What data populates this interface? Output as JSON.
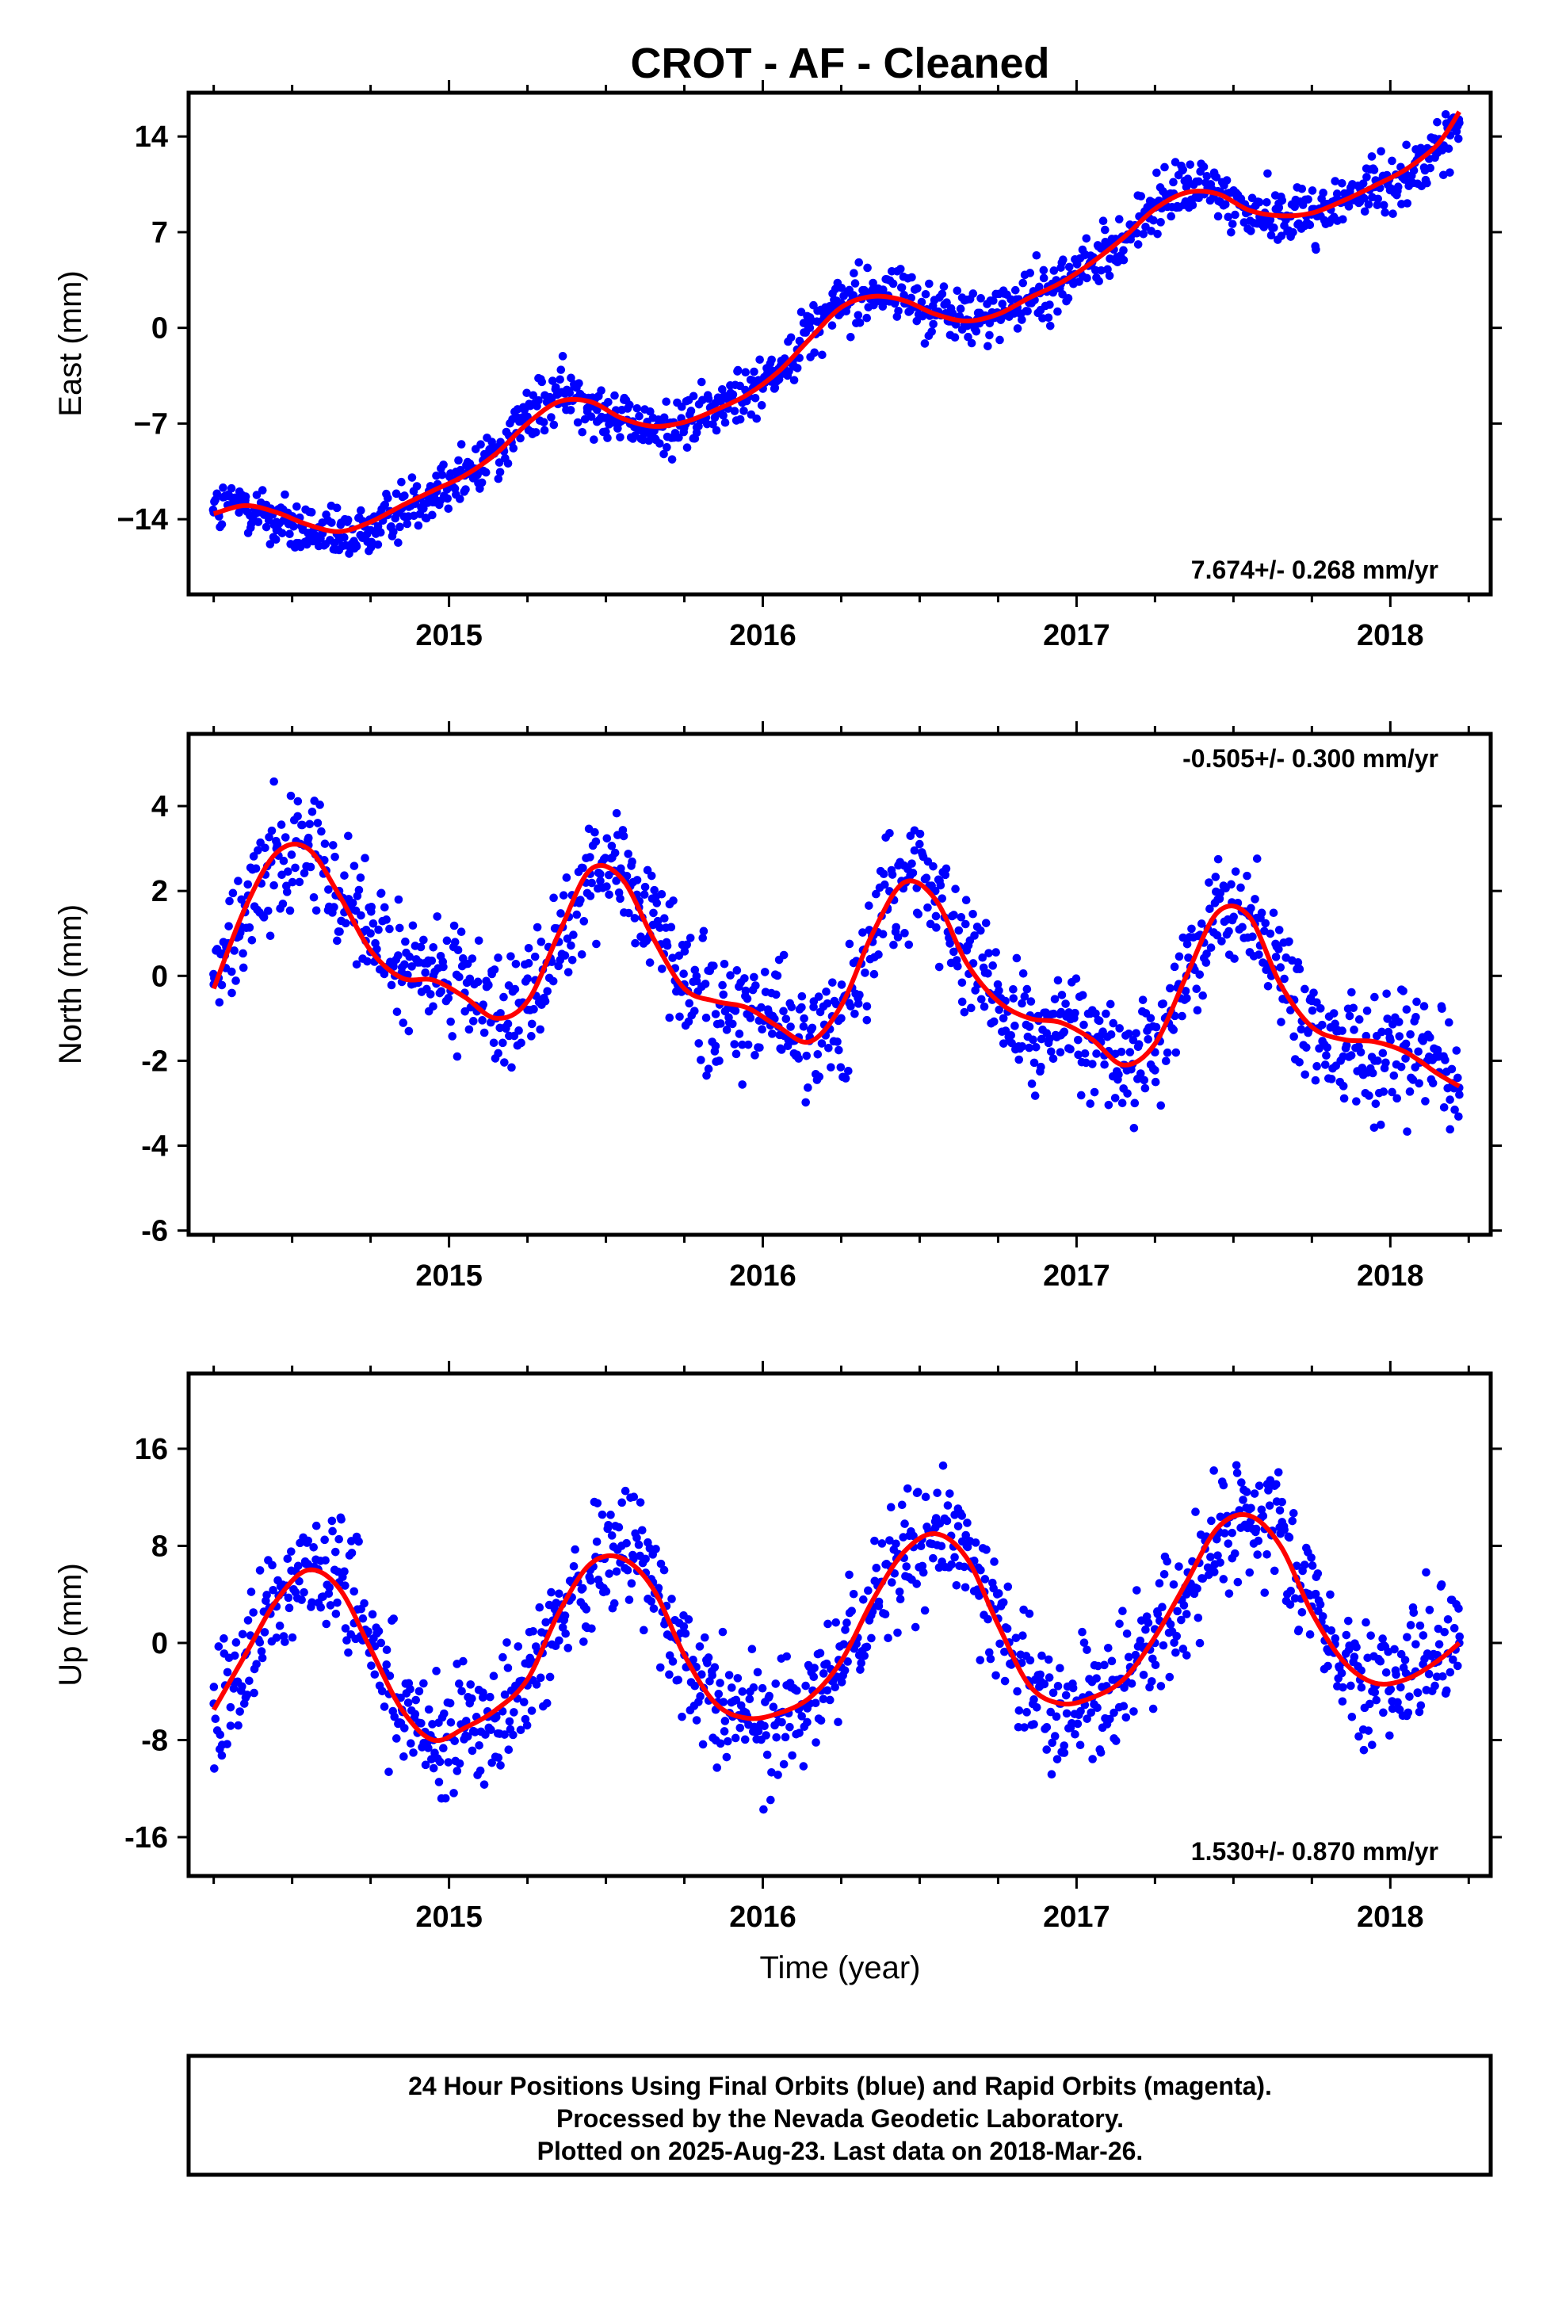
{
  "title": "CROT  - AF - Cleaned",
  "xlabel": "Time (year)",
  "colors": {
    "points": "#0000ff",
    "model": "#ff0000",
    "frame": "#000000"
  },
  "footer": {
    "line1": "24 Hour Positions Using Final Orbits (blue) and Rapid Orbits (magenta).",
    "line2": "Processed by the Nevada Geodetic Laboratory.",
    "line3": "Plotted on 2025-Aug-23. Last data on 2018-Mar-26."
  },
  "chart_data": [
    {
      "type": "scatter",
      "ylabel": "East (mm)",
      "rate_label": "7.674+/- 0.268 mm/yr",
      "rate_placement": "bottom-right",
      "xlim": [
        2014.17,
        2018.32
      ],
      "ylim": [
        -19.5,
        17.2
      ],
      "x_ticks": [
        2015,
        2016,
        2017,
        2018
      ],
      "x_tick_labels": [
        "2015",
        "2016",
        "2017",
        "2018"
      ],
      "y_ticks": [
        14,
        7,
        0,
        -7,
        -14
      ],
      "y_tick_labels": [
        "14",
        "7",
        "0",
        "−7",
        "−14"
      ],
      "grid": false,
      "series": [
        {
          "kind": "scatter",
          "x": [
            2014.25,
            2014.35,
            2014.45,
            2014.55,
            2014.65,
            2014.75,
            2014.85,
            2014.95,
            2015.05,
            2015.15,
            2015.25,
            2015.35,
            2015.45,
            2015.55,
            2015.65,
            2015.75,
            2015.85,
            2015.95,
            2016.05,
            2016.15,
            2016.25,
            2016.35,
            2016.45,
            2016.55,
            2016.65,
            2016.75,
            2016.85,
            2016.95,
            2017.05,
            2017.15,
            2017.25,
            2017.35,
            2017.45,
            2017.55,
            2017.65,
            2017.75,
            2017.85,
            2017.95,
            2018.05,
            2018.15,
            2018.22
          ],
          "y": [
            -13.5,
            -12.8,
            -14.2,
            -15.0,
            -15.5,
            -14.8,
            -13.2,
            -11.8,
            -10.8,
            -9.0,
            -6.5,
            -4.8,
            -5.2,
            -6.8,
            -7.5,
            -7.0,
            -6.0,
            -4.8,
            -3.0,
            0.0,
            1.8,
            2.8,
            2.4,
            1.2,
            0.6,
            1.0,
            2.2,
            3.2,
            4.8,
            6.5,
            8.8,
            10.3,
            10.0,
            8.5,
            8.2,
            8.4,
            9.2,
            10.3,
            11.2,
            12.8,
            15.0
          ]
        },
        {
          "kind": "line",
          "x": [
            2014.25,
            2014.35,
            2014.45,
            2014.55,
            2014.65,
            2014.75,
            2014.85,
            2014.95,
            2015.05,
            2015.15,
            2015.25,
            2015.35,
            2015.45,
            2015.55,
            2015.65,
            2015.75,
            2015.85,
            2015.95,
            2016.05,
            2016.15,
            2016.25,
            2016.35,
            2016.45,
            2016.55,
            2016.65,
            2016.75,
            2016.85,
            2016.95,
            2017.05,
            2017.15,
            2017.25,
            2017.35,
            2017.45,
            2017.55,
            2017.65,
            2017.75,
            2017.85,
            2017.95,
            2018.05,
            2018.15,
            2018.22
          ],
          "y": [
            -13.6,
            -13.0,
            -13.5,
            -14.4,
            -14.9,
            -14.2,
            -13.0,
            -11.9,
            -10.8,
            -9.2,
            -7.0,
            -5.4,
            -5.4,
            -6.6,
            -7.2,
            -6.9,
            -6.0,
            -4.9,
            -3.2,
            -0.8,
            1.5,
            2.3,
            2.0,
            1.0,
            0.5,
            1.0,
            2.2,
            3.3,
            4.8,
            6.6,
            8.7,
            9.9,
            9.8,
            8.6,
            8.2,
            8.4,
            9.3,
            10.4,
            11.6,
            13.4,
            15.8
          ]
        }
      ]
    },
    {
      "type": "scatter",
      "ylabel": "North (mm)",
      "rate_label": "-0.505+/- 0.300 mm/yr",
      "rate_placement": "top-right",
      "xlim": [
        2014.17,
        2018.32
      ],
      "ylim": [
        -6.1,
        5.7
      ],
      "x_ticks": [
        2015,
        2016,
        2017,
        2018
      ],
      "x_tick_labels": [
        "2015",
        "2016",
        "2017",
        "2018"
      ],
      "y_ticks": [
        4,
        2,
        0,
        -2,
        -4,
        -6
      ],
      "y_tick_labels": [
        "4",
        "2",
        "0",
        "-2",
        "-4",
        "-6"
      ],
      "grid": false,
      "series": [
        {
          "kind": "scatter",
          "x": [
            2014.25,
            2014.35,
            2014.45,
            2014.55,
            2014.65,
            2014.75,
            2014.85,
            2014.95,
            2015.05,
            2015.15,
            2015.25,
            2015.35,
            2015.45,
            2015.55,
            2015.65,
            2015.75,
            2015.85,
            2015.95,
            2016.05,
            2016.15,
            2016.25,
            2016.35,
            2016.45,
            2016.55,
            2016.65,
            2016.75,
            2016.85,
            2016.95,
            2017.05,
            2017.15,
            2017.25,
            2017.35,
            2017.45,
            2017.55,
            2017.65,
            2017.75,
            2017.85,
            2017.95,
            2018.05,
            2018.15,
            2018.22
          ],
          "y": [
            -0.2,
            1.5,
            3.0,
            3.2,
            2.0,
            1.0,
            0.2,
            0.0,
            -0.4,
            -1.0,
            -0.8,
            0.8,
            2.4,
            2.4,
            1.2,
            -0.2,
            -0.9,
            -0.9,
            -1.2,
            -1.5,
            -1.0,
            0.8,
            2.6,
            2.0,
            0.6,
            -0.5,
            -1.2,
            -1.4,
            -1.5,
            -2.1,
            -1.8,
            0.0,
            1.8,
            1.5,
            0.2,
            -1.2,
            -1.9,
            -2.0,
            -1.6,
            -1.8,
            -2.8
          ]
        },
        {
          "kind": "line",
          "x": [
            2014.25,
            2014.35,
            2014.45,
            2014.55,
            2014.65,
            2014.75,
            2014.85,
            2014.95,
            2015.05,
            2015.15,
            2015.25,
            2015.35,
            2015.45,
            2015.55,
            2015.65,
            2015.75,
            2015.85,
            2015.95,
            2016.05,
            2016.15,
            2016.25,
            2016.35,
            2016.45,
            2016.55,
            2016.65,
            2016.75,
            2016.85,
            2016.95,
            2017.05,
            2017.15,
            2017.25,
            2017.35,
            2017.45,
            2017.55,
            2017.65,
            2017.75,
            2017.85,
            2017.95,
            2018.05,
            2018.15,
            2018.22
          ],
          "y": [
            -0.3,
            1.6,
            2.9,
            3.0,
            1.9,
            0.6,
            -0.05,
            -0.1,
            -0.5,
            -1.0,
            -0.6,
            1.0,
            2.5,
            2.3,
            0.9,
            -0.3,
            -0.6,
            -0.75,
            -1.2,
            -1.55,
            -0.7,
            1.0,
            2.2,
            1.8,
            0.3,
            -0.6,
            -1.0,
            -1.1,
            -1.5,
            -2.1,
            -1.6,
            0.0,
            1.5,
            1.4,
            -0.2,
            -1.2,
            -1.5,
            -1.55,
            -1.8,
            -2.3,
            -2.6
          ]
        }
      ]
    },
    {
      "type": "scatter",
      "ylabel": "Up (mm)",
      "rate_label": "1.530+/- 0.870 mm/yr",
      "rate_placement": "bottom-right",
      "xlim": [
        2014.17,
        2018.32
      ],
      "ylim": [
        -19.2,
        22.2
      ],
      "x_ticks": [
        2015,
        2016,
        2017,
        2018
      ],
      "x_tick_labels": [
        "2015",
        "2016",
        "2017",
        "2018"
      ],
      "y_ticks": [
        16,
        8,
        0,
        -8,
        -16
      ],
      "y_tick_labels": [
        "16",
        "8",
        "0",
        "-8",
        "-16"
      ],
      "grid": false,
      "series": [
        {
          "kind": "scatter",
          "x": [
            2014.25,
            2014.35,
            2014.45,
            2014.55,
            2014.65,
            2014.75,
            2014.85,
            2014.95,
            2015.05,
            2015.15,
            2015.25,
            2015.35,
            2015.45,
            2015.55,
            2015.65,
            2015.75,
            2015.85,
            2015.95,
            2016.05,
            2016.15,
            2016.25,
            2016.35,
            2016.45,
            2016.55,
            2016.65,
            2016.75,
            2016.85,
            2016.95,
            2017.05,
            2017.15,
            2017.25,
            2017.35,
            2017.45,
            2017.55,
            2017.65,
            2017.75,
            2017.85,
            2017.95,
            2018.05,
            2018.15,
            2018.22
          ],
          "y": [
            -5.0,
            -1.0,
            3.0,
            6.5,
            5.0,
            0.0,
            -5.5,
            -8.0,
            -7.0,
            -6.0,
            -3.5,
            2.0,
            6.0,
            8.0,
            5.0,
            -1.0,
            -5.5,
            -6.0,
            -6.5,
            -5.0,
            -2.0,
            3.0,
            7.0,
            9.5,
            8.0,
            2.0,
            -3.5,
            -5.0,
            -4.5,
            -3.0,
            0.0,
            4.0,
            9.0,
            11.0,
            9.0,
            3.0,
            -1.5,
            -3.5,
            -2.5,
            -1.0,
            0.0
          ]
        },
        {
          "kind": "line",
          "x": [
            2014.25,
            2014.35,
            2014.45,
            2014.55,
            2014.65,
            2014.75,
            2014.85,
            2014.95,
            2015.05,
            2015.15,
            2015.25,
            2015.35,
            2015.45,
            2015.55,
            2015.65,
            2015.75,
            2015.85,
            2015.95,
            2016.05,
            2016.15,
            2016.25,
            2016.35,
            2016.45,
            2016.55,
            2016.65,
            2016.75,
            2016.85,
            2016.95,
            2017.05,
            2017.15,
            2017.25,
            2017.35,
            2017.45,
            2017.55,
            2017.65,
            2017.75,
            2017.85,
            2017.95,
            2018.05,
            2018.15,
            2018.22
          ],
          "y": [
            -5.5,
            -1.0,
            3.5,
            6.0,
            4.5,
            -0.5,
            -5.5,
            -8.0,
            -7.0,
            -5.5,
            -3.0,
            2.5,
            6.5,
            7.0,
            4.5,
            -1.0,
            -5.0,
            -6.2,
            -5.8,
            -4.5,
            -1.5,
            3.5,
            7.5,
            9.0,
            7.0,
            1.5,
            -3.5,
            -5.0,
            -4.5,
            -3.0,
            0.5,
            5.0,
            9.5,
            10.5,
            8.0,
            2.5,
            -1.5,
            -3.3,
            -3.0,
            -1.5,
            0.0
          ]
        }
      ]
    }
  ]
}
